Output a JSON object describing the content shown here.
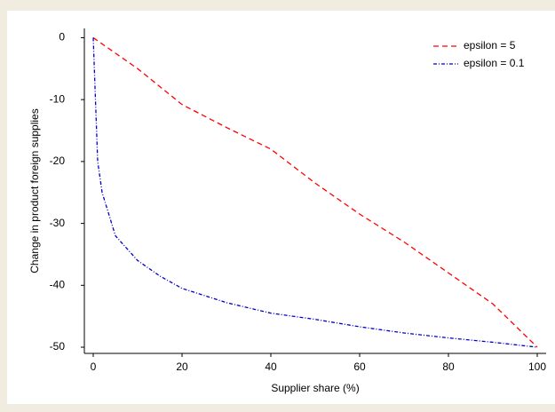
{
  "chart_data": {
    "type": "line",
    "x_label": "Supplier share (%)",
    "y_label": "Change in product foreign supplies",
    "xlim": [
      -2,
      102
    ],
    "ylim": [
      -51,
      1.5
    ],
    "xticks": [
      0,
      20,
      40,
      60,
      80,
      100
    ],
    "yticks": [
      0,
      -10,
      -20,
      -30,
      -40,
      -50
    ],
    "grid": false,
    "legend": "upper right",
    "series": [
      {
        "name": "epsilon = 5",
        "color": "#ff0000",
        "dash": "6,4",
        "x": [
          0,
          10,
          20,
          30,
          40,
          50,
          60,
          70,
          80,
          90,
          100
        ],
        "values": [
          0,
          -5,
          -10.8,
          -14.5,
          -18,
          -23.5,
          -28.5,
          -33,
          -38,
          -43,
          -50
        ]
      },
      {
        "name": "epsilon = 0.1",
        "color": "#0000cc",
        "dash": "4,2,1,2",
        "x": [
          0,
          0.5,
          1,
          2,
          5,
          10,
          15,
          20,
          30,
          40,
          50,
          60,
          70,
          80,
          90,
          100
        ],
        "values": [
          0,
          -10,
          -20,
          -25,
          -32,
          -36,
          -38.5,
          -40.5,
          -42.8,
          -44.5,
          -45.5,
          -46.7,
          -47.7,
          -48.5,
          -49.2,
          -50
        ]
      }
    ]
  }
}
